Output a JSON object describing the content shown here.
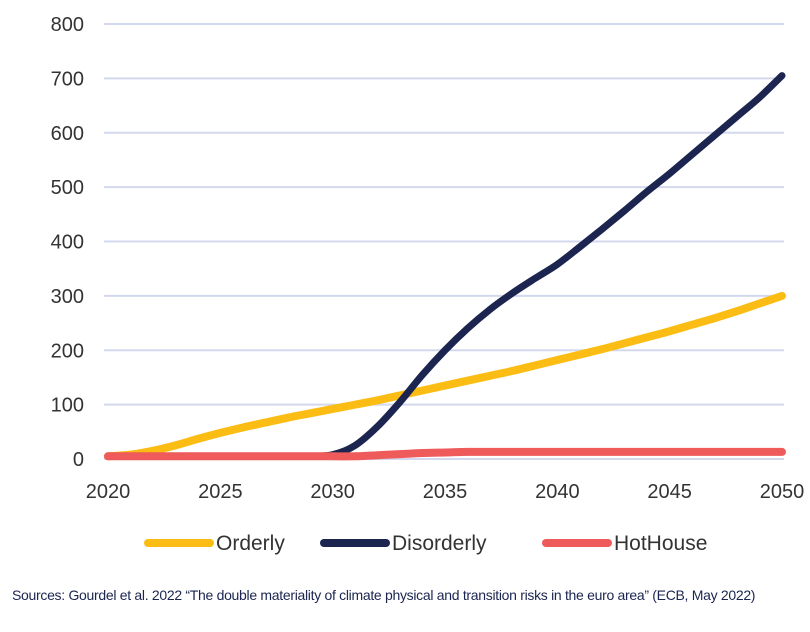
{
  "chart_data": {
    "type": "line",
    "title": "",
    "xlabel": "",
    "ylabel": "",
    "xlim": [
      2020,
      2050
    ],
    "ylim": [
      0,
      800
    ],
    "grid": true,
    "legend_placement": "bottom",
    "xticks": [
      2020,
      2025,
      2030,
      2035,
      2040,
      2045,
      2050
    ],
    "yticks": [
      0,
      100,
      200,
      300,
      400,
      500,
      600,
      700,
      800
    ],
    "x": [
      2020,
      2021,
      2022,
      2023,
      2024,
      2025,
      2026,
      2027,
      2028,
      2029,
      2030,
      2031,
      2032,
      2033,
      2034,
      2035,
      2036,
      2037,
      2038,
      2039,
      2040,
      2041,
      2042,
      2043,
      2044,
      2045,
      2046,
      2047,
      2048,
      2049,
      2050
    ],
    "series": [
      {
        "name": "Orderly",
        "color": "#fbbd14",
        "values": [
          5,
          8,
          15,
          25,
          37,
          48,
          58,
          67,
          76,
          84,
          92,
          100,
          108,
          117,
          126,
          135,
          144,
          153,
          162,
          172,
          182,
          192,
          202,
          213,
          224,
          235,
          247,
          259,
          272,
          286,
          300
        ]
      },
      {
        "name": "Disorderly",
        "color": "#1b2550",
        "values": [
          5,
          5,
          5,
          5,
          5,
          5,
          5,
          5,
          5,
          5,
          8,
          25,
          60,
          105,
          155,
          200,
          240,
          275,
          305,
          332,
          358,
          390,
          423,
          457,
          492,
          525,
          560,
          595,
          630,
          665,
          705
        ]
      },
      {
        "name": "HotHouse",
        "color": "#ef5a5a",
        "values": [
          5,
          5,
          5,
          5,
          5,
          5,
          5,
          5,
          5,
          5,
          5,
          5,
          7,
          9,
          11,
          12,
          13,
          13,
          13,
          13,
          13,
          13,
          13,
          13,
          13,
          13,
          13,
          13,
          13,
          13,
          13
        ]
      }
    ],
    "gridline_color": "#d3d8ee"
  },
  "source": "Sources: Gourdel et al. 2022 “The double materiality of climate physical and transition risks in the euro area” (ECB, May 2022)"
}
